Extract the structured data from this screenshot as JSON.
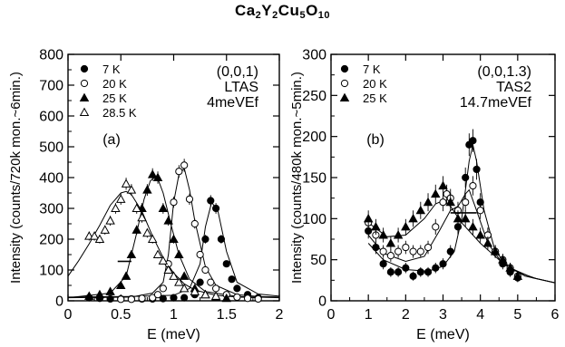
{
  "figure": {
    "title_parts": [
      {
        "t": "Ca",
        "sub": false
      },
      {
        "t": "2",
        "sub": true
      },
      {
        "t": "Y",
        "sub": false
      },
      {
        "t": "2",
        "sub": true
      },
      {
        "t": "Cu",
        "sub": false
      },
      {
        "t": "5",
        "sub": true
      },
      {
        "t": "O",
        "sub": false
      },
      {
        "t": "10",
        "sub": true
      }
    ]
  },
  "chart_data": [
    {
      "type": "scatter",
      "panel_label": "(a)",
      "annotation_lines": [
        "(0,0,1)",
        "LTAS",
        "4meVEf"
      ],
      "xlabel": "E (meV)",
      "ylabel": "Intensity (counts/720k mon.~6min.)",
      "xlim": [
        0,
        2
      ],
      "ylim": [
        0,
        800
      ],
      "xticks": [
        0,
        0.5,
        1,
        1.5,
        2
      ],
      "xtick_labels": [
        "0",
        "0.5",
        "1",
        "1.5",
        "2"
      ],
      "yticks": [
        0,
        100,
        200,
        300,
        400,
        500,
        600,
        700,
        800
      ],
      "ytick_labels": [
        "0",
        "100",
        "200",
        "300",
        "400",
        "500",
        "600",
        "700",
        "800"
      ],
      "legend_position": "top-left",
      "resolution_bar": {
        "x": [
          0.47,
          0.6
        ],
        "y": 128
      },
      "series": [
        {
          "name": "7 K",
          "marker": "filled-circle",
          "x": [
            0.2,
            0.3,
            0.4,
            0.5,
            0.6,
            0.7,
            0.8,
            0.9,
            1.0,
            1.1,
            1.2,
            1.25,
            1.3,
            1.35,
            1.4,
            1.45,
            1.5,
            1.55,
            1.6,
            1.7,
            1.8
          ],
          "y": [
            10,
            8,
            6,
            6,
            6,
            6,
            6,
            7,
            10,
            10,
            20,
            60,
            200,
            325,
            300,
            200,
            120,
            70,
            40,
            20,
            10
          ],
          "fit_x": [
            0.0,
            0.6,
            1.0,
            1.15,
            1.25,
            1.3,
            1.36,
            1.42,
            1.5,
            1.6,
            1.8,
            2.0
          ],
          "fit_y": [
            12,
            14,
            18,
            40,
            120,
            240,
            320,
            290,
            160,
            60,
            22,
            15
          ]
        },
        {
          "name": "20 K",
          "marker": "open-circle",
          "x": [
            0.5,
            0.6,
            0.7,
            0.8,
            0.85,
            0.9,
            0.95,
            1.0,
            1.05,
            1.1,
            1.15,
            1.2,
            1.25,
            1.3,
            1.35,
            1.4,
            1.5,
            1.6,
            1.7,
            1.8
          ],
          "y": [
            5,
            5,
            8,
            10,
            20,
            40,
            120,
            320,
            420,
            440,
            330,
            250,
            150,
            100,
            60,
            40,
            20,
            12,
            8,
            6
          ],
          "fit_x": [
            0.0,
            0.6,
            0.8,
            0.9,
            0.95,
            1.0,
            1.05,
            1.1,
            1.15,
            1.2,
            1.3,
            1.4,
            1.6,
            1.8,
            2.0
          ],
          "fit_y": [
            10,
            12,
            25,
            60,
            150,
            320,
            410,
            430,
            360,
            260,
            110,
            50,
            20,
            14,
            12
          ]
        },
        {
          "name": "25 K",
          "marker": "filled-triangle",
          "x": [
            0.2,
            0.3,
            0.4,
            0.5,
            0.55,
            0.6,
            0.65,
            0.7,
            0.75,
            0.8,
            0.85,
            0.9,
            0.95,
            1.0,
            1.05,
            1.1,
            1.2,
            1.3,
            1.4,
            1.5
          ],
          "y": [
            15,
            20,
            30,
            50,
            80,
            150,
            230,
            300,
            360,
            410,
            400,
            300,
            260,
            200,
            150,
            80,
            40,
            20,
            12,
            8
          ],
          "fit_x": [
            0.0,
            0.4,
            0.55,
            0.65,
            0.72,
            0.78,
            0.84,
            0.9,
            0.98,
            1.05,
            1.15,
            1.3,
            1.6,
            2.0
          ],
          "fit_y": [
            10,
            25,
            80,
            220,
            330,
            390,
            405,
            350,
            240,
            150,
            70,
            30,
            14,
            10
          ]
        },
        {
          "name": "28.5 K",
          "marker": "open-triangle",
          "x": [
            0.2,
            0.25,
            0.3,
            0.35,
            0.4,
            0.45,
            0.5,
            0.55,
            0.6,
            0.65,
            0.7,
            0.75,
            0.8,
            0.85,
            0.9,
            0.95,
            1.0,
            1.05,
            1.1,
            1.2,
            1.3,
            1.4
          ],
          "y": [
            210,
            210,
            200,
            230,
            260,
            300,
            330,
            380,
            360,
            300,
            270,
            220,
            200,
            150,
            130,
            100,
            80,
            60,
            40,
            30,
            20,
            15
          ],
          "fit_x": [
            0.0,
            0.1,
            0.2,
            0.3,
            0.4,
            0.5,
            0.55,
            0.6,
            0.7,
            0.8,
            0.9,
            1.0,
            1.1,
            1.2,
            1.4,
            1.6,
            1.8
          ],
          "fit_y": [
            80,
            130,
            185,
            245,
            310,
            350,
            355,
            345,
            290,
            210,
            140,
            90,
            55,
            35,
            18,
            12,
            10
          ]
        }
      ]
    },
    {
      "type": "scatter",
      "panel_label": "(b)",
      "annotation_lines": [
        "(0,0,1.3)",
        "TAS2",
        "14.7meVEf"
      ],
      "xlabel": "E (meV)",
      "ylabel": "Intensity (counts/480k mon.~5min.)",
      "xlim": [
        0,
        6
      ],
      "ylim": [
        0,
        300
      ],
      "xticks": [
        0,
        1,
        2,
        3,
        4,
        5,
        6
      ],
      "xtick_labels": [
        "0",
        "1",
        "2",
        "3",
        "4",
        "5",
        "6"
      ],
      "yticks": [
        0,
        50,
        100,
        150,
        200,
        250,
        300
      ],
      "ytick_labels": [
        "0",
        "50",
        "100",
        "150",
        "200",
        "250",
        "300"
      ],
      "legend_position": "top-left",
      "resolution_bar": {
        "x": [
          3.2,
          3.9
        ],
        "y": 107
      },
      "series": [
        {
          "name": "7 K",
          "marker": "filled-circle",
          "x": [
            1.0,
            1.2,
            1.4,
            1.6,
            1.8,
            2.0,
            2.2,
            2.4,
            2.6,
            2.8,
            3.0,
            3.2,
            3.4,
            3.6,
            3.7,
            3.8,
            3.9,
            4.0,
            4.2,
            4.4,
            4.6,
            4.8,
            5.0
          ],
          "y": [
            85,
            65,
            45,
            35,
            35,
            40,
            30,
            35,
            35,
            40,
            45,
            60,
            90,
            150,
            190,
            195,
            160,
            120,
            80,
            60,
            45,
            35,
            28
          ],
          "fit_x": [
            1.0,
            1.4,
            2.0,
            2.6,
            3.0,
            3.3,
            3.5,
            3.7,
            3.8,
            3.9,
            4.1,
            4.4,
            4.8,
            5.4,
            6.0
          ],
          "fit_y": [
            70,
            50,
            38,
            36,
            42,
            60,
            100,
            170,
            190,
            170,
            110,
            60,
            40,
            28,
            22
          ]
        },
        {
          "name": "20 K",
          "marker": "open-circle",
          "x": [
            1.0,
            1.2,
            1.4,
            1.6,
            1.8,
            2.0,
            2.2,
            2.4,
            2.6,
            2.8,
            3.0,
            3.1,
            3.2,
            3.4,
            3.6,
            3.8,
            4.0,
            4.2,
            4.4,
            4.6,
            4.8,
            5.0
          ],
          "y": [
            95,
            80,
            60,
            55,
            60,
            65,
            60,
            60,
            65,
            90,
            120,
            130,
            125,
            110,
            120,
            140,
            110,
            80,
            60,
            50,
            40,
            30
          ],
          "fit_x": [
            1.0,
            1.4,
            2.0,
            2.5,
            2.9,
            3.2,
            3.4,
            3.6,
            3.7,
            3.9,
            4.2,
            4.6,
            5.2,
            6.0
          ],
          "fit_y": [
            80,
            58,
            48,
            54,
            85,
            110,
            115,
            130,
            135,
            110,
            70,
            45,
            30,
            22
          ]
        },
        {
          "name": "25 K",
          "marker": "filled-triangle",
          "x": [
            1.0,
            1.2,
            1.4,
            1.6,
            1.8,
            2.0,
            2.2,
            2.4,
            2.6,
            2.8,
            3.0,
            3.2,
            3.4,
            3.6,
            3.8,
            4.0,
            4.2,
            4.4,
            4.6,
            4.8,
            5.0
          ],
          "y": [
            100,
            90,
            80,
            70,
            80,
            90,
            100,
            110,
            120,
            130,
            140,
            120,
            100,
            100,
            90,
            80,
            70,
            60,
            50,
            40,
            30
          ],
          "fit_x": [
            1.0,
            1.5,
            2.0,
            2.5,
            2.8,
            3.0,
            3.2,
            3.5,
            4.0,
            4.5,
            5.0,
            5.5,
            6.0
          ],
          "fit_y": [
            95,
            78,
            80,
            100,
            118,
            122,
            115,
            95,
            70,
            50,
            35,
            27,
            22
          ]
        }
      ]
    }
  ]
}
